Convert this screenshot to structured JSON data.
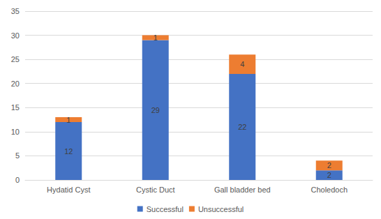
{
  "chart_data": {
    "type": "bar",
    "stacked": true,
    "data_labels": true,
    "grid": true,
    "legend": "bottom",
    "categories": [
      "Hydatid Cyst",
      "Cystic Duct",
      "Gall bladder bed",
      "Choledoch"
    ],
    "series": [
      {
        "name": "Successful",
        "color": "#4472c4",
        "values": [
          12,
          29,
          22,
          2
        ]
      },
      {
        "name": "Unsuccessful",
        "color": "#ed7d31",
        "values": [
          1,
          1,
          4,
          2
        ]
      }
    ],
    "ylim": [
      0,
      35
    ],
    "yticks": [
      0,
      5,
      10,
      15,
      20,
      25,
      30,
      35
    ]
  }
}
